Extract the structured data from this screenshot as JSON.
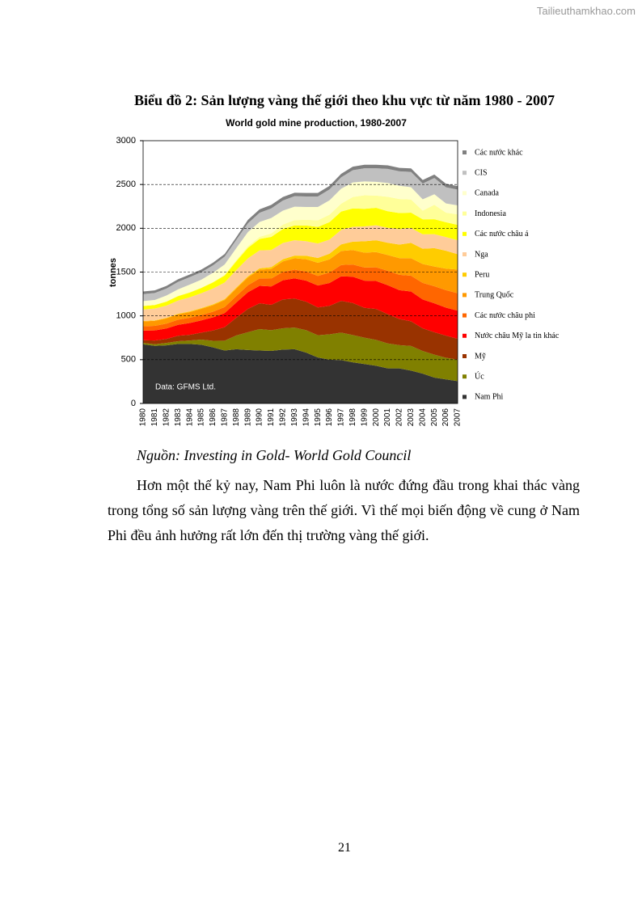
{
  "watermark": "Tailieuthamkhao.com",
  "caption": "Biểu đồ 2: Sản lượng vàng thế giới theo khu vực từ năm 1980 - 2007",
  "chart_data": {
    "type": "stacked-area",
    "title": "World gold mine production, 1980-2007",
    "y_label": "tonnes",
    "annotation": "Data: GFMS Ltd.",
    "categories": [
      "1980",
      "1981",
      "1982",
      "1983",
      "1984",
      "1985",
      "1986",
      "1987",
      "1988",
      "1989",
      "1990",
      "1991",
      "1992",
      "1993",
      "1994",
      "1995",
      "1996",
      "1997",
      "1998",
      "1999",
      "2000",
      "2001",
      "2002",
      "2003",
      "2004",
      "2005",
      "2006",
      "2007"
    ],
    "ylim": [
      0,
      3000
    ],
    "yticks": [
      0,
      500,
      1000,
      1500,
      2000,
      2500,
      3000
    ],
    "grid": true,
    "series": [
      {
        "name": "Nam Phi",
        "color": "#333333",
        "values": [
          675,
          658,
          664,
          680,
          680,
          670,
          640,
          605,
          620,
          610,
          605,
          600,
          615,
          620,
          580,
          525,
          500,
          495,
          470,
          450,
          430,
          400,
          400,
          375,
          340,
          295,
          275,
          255
        ]
      },
      {
        "name": "Úc",
        "color": "#808000",
        "values": [
          17,
          18,
          27,
          31,
          39,
          59,
          75,
          111,
          157,
          204,
          244,
          236,
          243,
          247,
          256,
          254,
          289,
          314,
          311,
          301,
          296,
          285,
          266,
          282,
          259,
          262,
          247,
          246
        ]
      },
      {
        "name": "Mỹ",
        "color": "#993300",
        "values": [
          30,
          43,
          45,
          62,
          64,
          80,
          118,
          155,
          201,
          266,
          294,
          290,
          329,
          331,
          326,
          317,
          326,
          362,
          366,
          341,
          353,
          335,
          298,
          281,
          258,
          256,
          252,
          238
        ]
      },
      {
        "name": "Nước châu Mỹ la tin khác",
        "color": "#ff0000",
        "values": [
          110,
          115,
          120,
          125,
          135,
          140,
          150,
          160,
          175,
          190,
          200,
          210,
          220,
          230,
          240,
          250,
          260,
          280,
          300,
          310,
          320,
          330,
          330,
          340,
          330,
          330,
          320,
          320
        ]
      },
      {
        "name": "Các nước châu phi",
        "color": "#ff6600",
        "values": [
          50,
          52,
          55,
          58,
          60,
          62,
          65,
          70,
          75,
          80,
          85,
          90,
          95,
          100,
          105,
          110,
          120,
          130,
          140,
          150,
          155,
          165,
          175,
          180,
          190,
          195,
          200,
          200
        ]
      },
      {
        "name": "Trung Quốc",
        "color": "#ff9900",
        "values": [
          55,
          58,
          60,
          62,
          65,
          70,
          75,
          80,
          85,
          90,
          100,
          110,
          120,
          130,
          140,
          150,
          150,
          160,
          165,
          170,
          175,
          180,
          190,
          200,
          215,
          225,
          245,
          270
        ]
      },
      {
        "name": "Peru",
        "color": "#ffcc00",
        "values": [
          5,
          5,
          6,
          7,
          8,
          8,
          9,
          10,
          10,
          12,
          15,
          20,
          25,
          30,
          40,
          55,
          65,
          75,
          95,
          130,
          135,
          140,
          155,
          175,
          175,
          210,
          205,
          175
        ]
      },
      {
        "name": "Nga",
        "color": "#ffcc99",
        "values": [
          130,
          135,
          140,
          150,
          160,
          170,
          180,
          190,
          200,
          205,
          205,
          195,
          185,
          175,
          165,
          165,
          160,
          165,
          170,
          170,
          170,
          170,
          175,
          170,
          165,
          160,
          155,
          160
        ]
      },
      {
        "name": "Các nước châu á",
        "color": "#ffff00",
        "values": [
          40,
          40,
          45,
          50,
          55,
          60,
          70,
          80,
          100,
          120,
          130,
          150,
          160,
          170,
          180,
          190,
          200,
          210,
          210,
          200,
          200,
          190,
          185,
          175,
          170,
          170,
          170,
          175
        ]
      },
      {
        "name": "Indonesia",
        "color": "#ffff99",
        "values": [
          5,
          5,
          5,
          5,
          5,
          5,
          5,
          10,
          15,
          20,
          25,
          40,
          50,
          60,
          65,
          75,
          85,
          90,
          130,
          155,
          140,
          165,
          160,
          150,
          100,
          165,
          110,
          120
        ]
      },
      {
        "name": "Canada",
        "color": "#ffffcc",
        "values": [
          52,
          52,
          65,
          73,
          86,
          90,
          105,
          116,
          135,
          160,
          169,
          176,
          160,
          153,
          146,
          152,
          164,
          171,
          166,
          158,
          156,
          158,
          151,
          141,
          129,
          121,
          104,
          102
        ]
      },
      {
        "name": "CIS",
        "color": "#c0c0c0",
        "values": [
          80,
          80,
          80,
          85,
          85,
          85,
          85,
          90,
          95,
          100,
          105,
          110,
          115,
          120,
          120,
          120,
          125,
          130,
          140,
          150,
          155,
          160,
          165,
          175,
          180,
          185,
          185,
          180
        ]
      },
      {
        "name": "Các nước khác",
        "color": "#808080",
        "values": [
          30,
          30,
          30,
          30,
          30,
          30,
          30,
          30,
          30,
          40,
          40,
          40,
          40,
          40,
          40,
          40,
          40,
          40,
          40,
          40,
          40,
          40,
          40,
          40,
          40,
          40,
          40,
          40
        ]
      }
    ]
  },
  "source": "Nguồn: Investing in Gold- World Gold Council",
  "paragraph": "Hơn một thế kỷ nay, Nam Phi luôn là nước đứng đầu trong khai thác vàng trong tổng số sản lượng vàng trên thế giới. Vì thế mọi biến động về cung ở Nam Phi đều ảnh hưởng rất lớn đến thị trường vàng thế giới.",
  "page_number": "21"
}
